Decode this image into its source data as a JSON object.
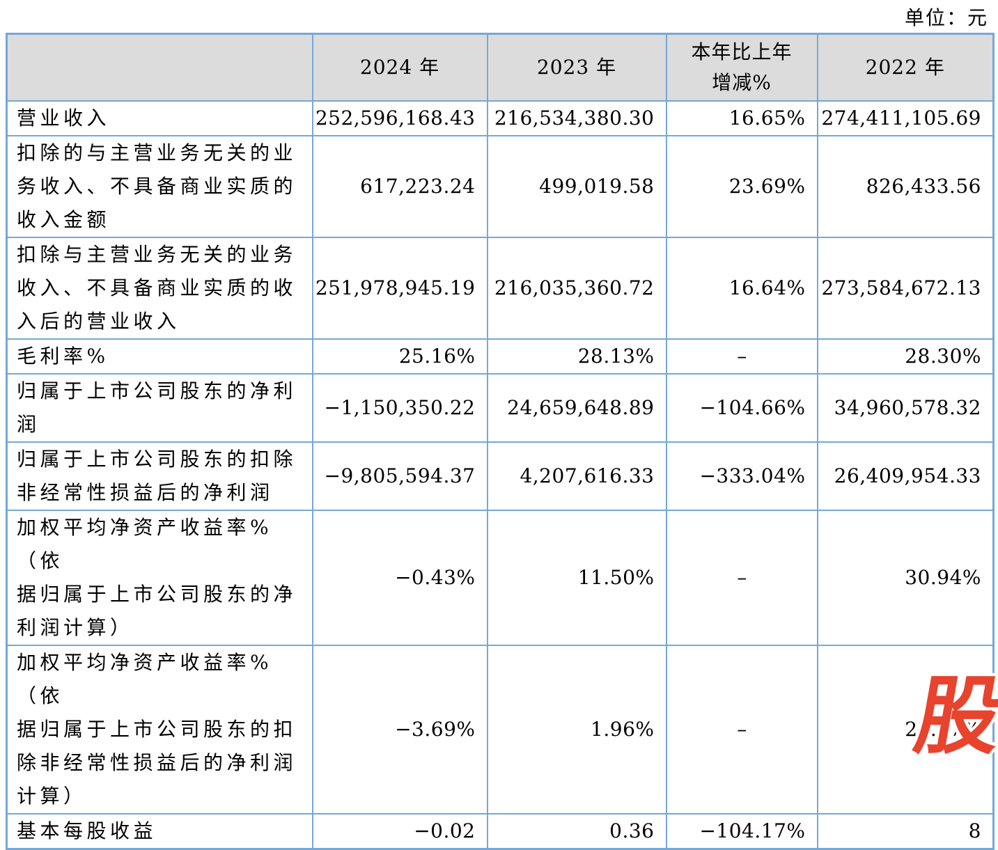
{
  "unit_label": "单位：元",
  "colors": {
    "table_border": "#74A8D8",
    "header_background": "#DCDCDC",
    "watermark_red": "#E8432D"
  },
  "watermark": {
    "text": "股"
  },
  "table": {
    "headers": {
      "col1": "",
      "col2": "2024 年",
      "col3": "2023 年",
      "col4": "本年比上年\n增减%",
      "col5": "2022 年"
    },
    "rows": [
      {
        "label": "营业收入",
        "values": [
          "252,596,168.43",
          "216,534,380.30",
          "16.65%",
          "274,411,105.69"
        ]
      },
      {
        "label": "扣除的与主营业务无关的业\n务收入、不具备商业实质的\n收入金额",
        "values": [
          "617,223.24",
          "499,019.58",
          "23.69%",
          "826,433.56"
        ]
      },
      {
        "label": "扣除与主营业务无关的业务\n收入、不具备商业实质的收\n入后的营业收入",
        "values": [
          "251,978,945.19",
          "216,035,360.72",
          "16.64%",
          "273,584,672.13"
        ]
      },
      {
        "label": "毛利率%",
        "values": [
          "25.16%",
          "28.13%",
          "–",
          "28.30%"
        ]
      },
      {
        "label": "归属于上市公司股东的净利\n润",
        "values": [
          "−1,150,350.22",
          "24,659,648.89",
          "−104.66%",
          "34,960,578.32"
        ]
      },
      {
        "label": "归属于上市公司股东的扣除\n非经常性损益后的净利润",
        "values": [
          "−9,805,594.37",
          "4,207,616.33",
          "−333.04%",
          "26,409,954.33"
        ]
      },
      {
        "label": "加权平均净资产收益率%（依\n据归属于上市公司股东的净\n利润计算）",
        "values": [
          "−0.43%",
          "11.50%",
          "–",
          "30.94%"
        ]
      },
      {
        "label": "加权平均净资产收益率%（依\n据归属于上市公司股东的扣\n除非经常性损益后的净利润\n计算）",
        "values": [
          "−3.69%",
          "1.96%",
          "–",
          "23.37%"
        ]
      },
      {
        "label": "基本每股收益",
        "values": [
          "−0.02",
          "0.36",
          "−104.17%",
          "8"
        ]
      }
    ]
  }
}
